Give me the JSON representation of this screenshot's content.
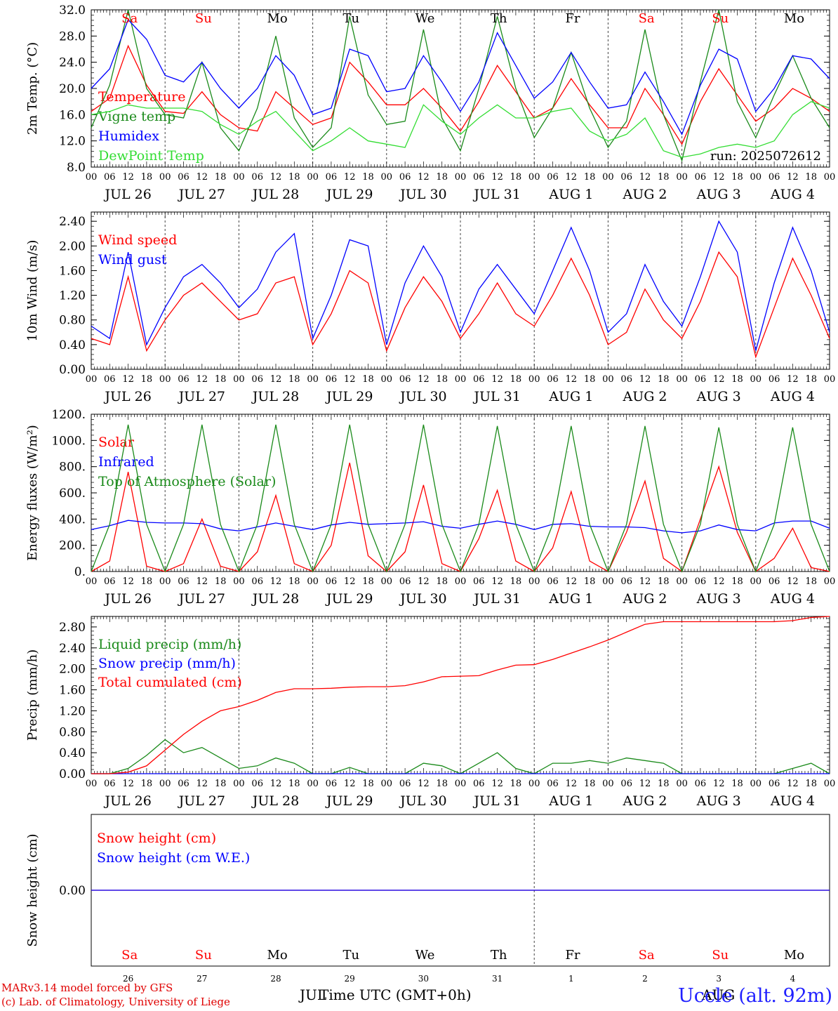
{
  "footer": {
    "credit_line1": "MARv3.14 model forced by GFS",
    "credit_line2": "(c) Lab. of Climatology, University of Liege",
    "station": "Uccle (alt. 92m)",
    "xlabel": "Time UTC (GMT+0h)",
    "month_left": "JUL",
    "month_right": "AUG"
  },
  "hour_ticks": [
    "00",
    "06",
    "12",
    "18"
  ],
  "date_labels": [
    "JUL 26",
    "JUL 27",
    "JUL 28",
    "JUL 29",
    "JUL 30",
    "JUL 31",
    "AUG  1",
    "AUG  2",
    "AUG  3",
    "AUG  4"
  ],
  "day_names": [
    "Sa",
    "Su",
    "Mo",
    "Tu",
    "We",
    "Th",
    "Fr",
    "Sa",
    "Su",
    "Mo"
  ],
  "day_nums": [
    "26",
    "27",
    "28",
    "29",
    "30",
    "31",
    "1",
    "2",
    "3",
    "4"
  ],
  "colors": {
    "red": "#ff0000",
    "green": "#1a8a1a",
    "blue": "#0000ff",
    "lightgreen": "#33dd33",
    "weekend": "#ff0000",
    "weekday": "#000000"
  },
  "chart_data": [
    {
      "type": "line",
      "ylabel": "2m Temp. (°C)",
      "ylim": [
        8.0,
        32.0
      ],
      "yticks": [
        "8.0",
        "12.0",
        "16.0",
        "20.0",
        "24.0",
        "28.0",
        "32.0"
      ],
      "run_label": "run: 2025072612",
      "x": [
        "2025-07-26T00",
        "2025-07-26T06",
        "2025-07-26T12",
        "2025-07-26T18",
        "2025-07-27T00",
        "2025-07-27T06",
        "2025-07-27T12",
        "2025-07-27T18",
        "2025-07-28T00",
        "2025-07-28T06",
        "2025-07-28T12",
        "2025-07-28T18",
        "2025-07-29T00",
        "2025-07-29T06",
        "2025-07-29T12",
        "2025-07-29T18",
        "2025-07-30T00",
        "2025-07-30T06",
        "2025-07-30T12",
        "2025-07-30T18",
        "2025-07-31T00",
        "2025-07-31T06",
        "2025-07-31T12",
        "2025-07-31T18",
        "2025-08-01T00",
        "2025-08-01T06",
        "2025-08-01T12",
        "2025-08-01T18",
        "2025-08-02T00",
        "2025-08-02T06",
        "2025-08-02T12",
        "2025-08-02T18",
        "2025-08-03T00",
        "2025-08-03T06",
        "2025-08-03T12",
        "2025-08-03T18",
        "2025-08-04T00",
        "2025-08-04T06",
        "2025-08-04T12",
        "2025-08-04T18",
        "2025-08-05T00"
      ],
      "series": [
        {
          "name": "Temperature",
          "color": "#ff0000",
          "values": [
            16.5,
            18.5,
            26.5,
            20.5,
            16.5,
            16.2,
            19.5,
            16.0,
            14.0,
            13.5,
            19.5,
            17.0,
            14.5,
            15.5,
            24.0,
            21.0,
            17.5,
            17.5,
            20.0,
            17.0,
            13.5,
            18.0,
            23.5,
            19.5,
            15.5,
            17.0,
            21.5,
            17.5,
            14.0,
            14.0,
            20.0,
            16.0,
            11.5,
            18.0,
            23.0,
            19.0,
            15.0,
            17.0,
            20.0,
            18.5,
            16.5
          ]
        },
        {
          "name": "Vigne temp",
          "color": "#1a8a1a",
          "values": [
            14.0,
            20.5,
            32.0,
            20.0,
            16.0,
            15.5,
            24.0,
            14.0,
            10.5,
            17.0,
            28.0,
            15.5,
            11.0,
            14.0,
            31.0,
            19.0,
            14.5,
            15.0,
            29.0,
            15.5,
            10.5,
            20.0,
            31.0,
            20.0,
            12.5,
            17.0,
            25.5,
            17.0,
            11.0,
            15.0,
            29.0,
            16.0,
            9.0,
            21.0,
            32.0,
            18.0,
            12.5,
            19.0,
            25.0,
            18.5,
            14.0
          ]
        },
        {
          "name": "Humidex",
          "color": "#0000ff",
          "values": [
            20.0,
            23.0,
            30.5,
            27.5,
            22.0,
            21.0,
            24.0,
            20.0,
            17.0,
            20.0,
            25.0,
            22.0,
            16.0,
            17.0,
            26.0,
            25.0,
            19.5,
            20.0,
            25.0,
            21.0,
            16.5,
            21.0,
            28.5,
            23.5,
            18.5,
            21.0,
            25.5,
            21.0,
            17.0,
            17.5,
            22.5,
            18.0,
            13.0,
            20.5,
            26.0,
            24.5,
            16.5,
            20.0,
            25.0,
            24.5,
            21.5
          ]
        },
        {
          "name": "DewPoint Temp",
          "color": "#33dd33",
          "values": [
            16.0,
            16.5,
            17.5,
            17.0,
            17.0,
            17.0,
            16.5,
            14.5,
            13.0,
            15.0,
            16.5,
            13.5,
            10.5,
            12.0,
            14.0,
            12.0,
            11.5,
            11.0,
            17.5,
            15.0,
            13.0,
            15.5,
            17.5,
            15.5,
            15.5,
            16.5,
            17.0,
            13.5,
            12.0,
            13.0,
            15.5,
            10.5,
            9.5,
            10.0,
            11.0,
            11.5,
            11.0,
            12.0,
            16.0,
            18.0,
            17.0
          ]
        }
      ]
    },
    {
      "type": "line",
      "ylabel": "10m Wind (m/s)",
      "ylim": [
        0.0,
        2.55
      ],
      "yticks": [
        "0.00",
        "0.40",
        "0.80",
        "1.20",
        "1.60",
        "2.00",
        "2.40"
      ],
      "x": [
        "2025-07-26T00",
        "2025-07-26T06",
        "2025-07-26T12",
        "2025-07-26T18",
        "2025-07-27T00",
        "2025-07-27T06",
        "2025-07-27T12",
        "2025-07-27T18",
        "2025-07-28T00",
        "2025-07-28T06",
        "2025-07-28T12",
        "2025-07-28T18",
        "2025-07-29T00",
        "2025-07-29T06",
        "2025-07-29T12",
        "2025-07-29T18",
        "2025-07-30T00",
        "2025-07-30T06",
        "2025-07-30T12",
        "2025-07-30T18",
        "2025-07-31T00",
        "2025-07-31T06",
        "2025-07-31T12",
        "2025-07-31T18",
        "2025-08-01T00",
        "2025-08-01T06",
        "2025-08-01T12",
        "2025-08-01T18",
        "2025-08-02T00",
        "2025-08-02T06",
        "2025-08-02T12",
        "2025-08-02T18",
        "2025-08-03T00",
        "2025-08-03T06",
        "2025-08-03T12",
        "2025-08-03T18",
        "2025-08-04T00",
        "2025-08-04T06",
        "2025-08-04T12",
        "2025-08-04T18",
        "2025-08-05T00"
      ],
      "series": [
        {
          "name": "Wind speed",
          "color": "#ff0000",
          "values": [
            0.5,
            0.4,
            1.5,
            0.3,
            0.8,
            1.2,
            1.4,
            1.1,
            0.8,
            0.9,
            1.4,
            1.5,
            0.4,
            0.9,
            1.6,
            1.4,
            0.3,
            1.0,
            1.5,
            1.1,
            0.5,
            0.9,
            1.4,
            0.9,
            0.7,
            1.2,
            1.8,
            1.2,
            0.4,
            0.6,
            1.3,
            0.8,
            0.5,
            1.1,
            1.9,
            1.5,
            0.2,
            1.0,
            1.8,
            1.2,
            0.5
          ]
        },
        {
          "name": "Wind gust",
          "color": "#0000ff",
          "values": [
            0.7,
            0.5,
            1.9,
            0.4,
            1.0,
            1.5,
            1.7,
            1.4,
            1.0,
            1.3,
            1.9,
            2.2,
            0.5,
            1.2,
            2.1,
            2.0,
            0.4,
            1.4,
            2.0,
            1.5,
            0.6,
            1.3,
            1.7,
            1.3,
            0.9,
            1.6,
            2.3,
            1.6,
            0.6,
            0.9,
            1.7,
            1.1,
            0.7,
            1.5,
            2.4,
            1.9,
            0.3,
            1.4,
            2.3,
            1.6,
            0.6
          ]
        }
      ]
    },
    {
      "type": "line",
      "ylabel": "Energy fluxes (W/m²)",
      "ylim": [
        0,
        1200
      ],
      "yticks": [
        "0.",
        "200.",
        "400.",
        "600.",
        "800.",
        "1000.",
        "1200."
      ],
      "x": [
        "2025-07-26T00",
        "2025-07-26T06",
        "2025-07-26T12",
        "2025-07-26T18",
        "2025-07-27T00",
        "2025-07-27T06",
        "2025-07-27T12",
        "2025-07-27T18",
        "2025-07-28T00",
        "2025-07-28T06",
        "2025-07-28T12",
        "2025-07-28T18",
        "2025-07-29T00",
        "2025-07-29T06",
        "2025-07-29T12",
        "2025-07-29T18",
        "2025-07-30T00",
        "2025-07-30T06",
        "2025-07-30T12",
        "2025-07-30T18",
        "2025-07-31T00",
        "2025-07-31T06",
        "2025-07-31T12",
        "2025-07-31T18",
        "2025-08-01T00",
        "2025-08-01T06",
        "2025-08-01T12",
        "2025-08-01T18",
        "2025-08-02T00",
        "2025-08-02T06",
        "2025-08-02T12",
        "2025-08-02T18",
        "2025-08-03T00",
        "2025-08-03T06",
        "2025-08-03T12",
        "2025-08-03T18",
        "2025-08-04T00",
        "2025-08-04T06",
        "2025-08-04T12",
        "2025-08-04T18",
        "2025-08-05T00"
      ],
      "series": [
        {
          "name": "Solar",
          "color": "#ff0000",
          "values": [
            0,
            80,
            760,
            40,
            0,
            60,
            400,
            40,
            0,
            150,
            580,
            60,
            0,
            200,
            830,
            120,
            0,
            150,
            660,
            60,
            0,
            250,
            620,
            80,
            0,
            180,
            610,
            80,
            0,
            300,
            690,
            100,
            0,
            400,
            800,
            300,
            0,
            100,
            330,
            30,
            0
          ]
        },
        {
          "name": "Infrared",
          "color": "#0000ff",
          "values": [
            320,
            350,
            390,
            375,
            370,
            370,
            365,
            325,
            310,
            340,
            370,
            345,
            320,
            355,
            375,
            360,
            365,
            370,
            380,
            345,
            330,
            360,
            385,
            360,
            320,
            360,
            365,
            345,
            340,
            340,
            335,
            310,
            295,
            310,
            355,
            320,
            310,
            370,
            385,
            385,
            330
          ]
        },
        {
          "name": "Top of Atmosphere (Solar)",
          "color": "#1a8a1a",
          "values": [
            0,
            360,
            1120,
            360,
            0,
            360,
            1120,
            360,
            0,
            360,
            1120,
            360,
            0,
            360,
            1120,
            360,
            0,
            360,
            1120,
            360,
            0,
            360,
            1110,
            360,
            0,
            360,
            1110,
            360,
            0,
            360,
            1110,
            360,
            0,
            360,
            1100,
            360,
            0,
            360,
            1100,
            360,
            0
          ]
        }
      ]
    },
    {
      "type": "line",
      "ylabel": "Precip (mm/h)",
      "ylim": [
        0.0,
        3.0
      ],
      "yticks": [
        "0.00",
        "0.40",
        "0.80",
        "1.20",
        "1.60",
        "2.00",
        "2.40",
        "2.80"
      ],
      "x": [
        "2025-07-26T00",
        "2025-07-26T06",
        "2025-07-26T12",
        "2025-07-26T18",
        "2025-07-27T00",
        "2025-07-27T06",
        "2025-07-27T12",
        "2025-07-27T18",
        "2025-07-28T00",
        "2025-07-28T06",
        "2025-07-28T12",
        "2025-07-28T18",
        "2025-07-29T00",
        "2025-07-29T06",
        "2025-07-29T12",
        "2025-07-29T18",
        "2025-07-30T00",
        "2025-07-30T06",
        "2025-07-30T12",
        "2025-07-30T18",
        "2025-07-31T00",
        "2025-07-31T06",
        "2025-07-31T12",
        "2025-07-31T18",
        "2025-08-01T00",
        "2025-08-01T06",
        "2025-08-01T12",
        "2025-08-01T18",
        "2025-08-02T00",
        "2025-08-02T06",
        "2025-08-02T12",
        "2025-08-02T18",
        "2025-08-03T00",
        "2025-08-03T06",
        "2025-08-03T12",
        "2025-08-03T18",
        "2025-08-04T00",
        "2025-08-04T06",
        "2025-08-04T12",
        "2025-08-04T18",
        "2025-08-05T00"
      ],
      "series": [
        {
          "name": "Liquid precip (mm/h)",
          "color": "#1a8a1a",
          "values": [
            0,
            0,
            0.1,
            0.35,
            0.65,
            0.4,
            0.5,
            0.3,
            0.1,
            0.15,
            0.3,
            0.2,
            0,
            0,
            0.12,
            0,
            0,
            0,
            0.2,
            0.15,
            0,
            0.2,
            0.4,
            0.1,
            0,
            0.2,
            0.2,
            0.25,
            0.2,
            0.3,
            0.25,
            0.2,
            0,
            0,
            0,
            0,
            0,
            0,
            0.1,
            0.2,
            0
          ]
        },
        {
          "name": "Snow precip (mm/h)",
          "color": "#0000ff",
          "values": [
            0,
            0,
            0,
            0,
            0,
            0,
            0,
            0,
            0,
            0,
            0,
            0,
            0,
            0,
            0,
            0,
            0,
            0,
            0,
            0,
            0,
            0,
            0,
            0,
            0,
            0,
            0,
            0,
            0,
            0,
            0,
            0,
            0,
            0,
            0,
            0,
            0,
            0,
            0,
            0,
            0
          ]
        },
        {
          "name": "Total cumulated (cm)",
          "color": "#ff0000",
          "values": [
            0,
            0,
            0.03,
            0.15,
            0.45,
            0.75,
            1.0,
            1.2,
            1.28,
            1.4,
            1.55,
            1.62,
            1.62,
            1.63,
            1.65,
            1.66,
            1.66,
            1.68,
            1.75,
            1.85,
            1.86,
            1.87,
            1.98,
            2.07,
            2.08,
            2.18,
            2.3,
            2.42,
            2.55,
            2.7,
            2.85,
            2.9,
            2.9,
            2.9,
            2.9,
            2.9,
            2.9,
            2.9,
            2.92,
            2.98,
            3.0
          ]
        }
      ]
    },
    {
      "type": "line",
      "ylabel": "Snow height (cm)",
      "ylim": [
        -0.5,
        0.5
      ],
      "yticks": [
        "0.00"
      ],
      "x": [
        "2025-07-26T00",
        "2025-08-05T00"
      ],
      "series": [
        {
          "name": "Snow height (cm)",
          "color": "#ff0000",
          "values": [
            0.0,
            0.0
          ]
        },
        {
          "name": "Snow height (cm W.E.)",
          "color": "#0000ff",
          "values": [
            0.0,
            0.0
          ]
        }
      ]
    }
  ]
}
